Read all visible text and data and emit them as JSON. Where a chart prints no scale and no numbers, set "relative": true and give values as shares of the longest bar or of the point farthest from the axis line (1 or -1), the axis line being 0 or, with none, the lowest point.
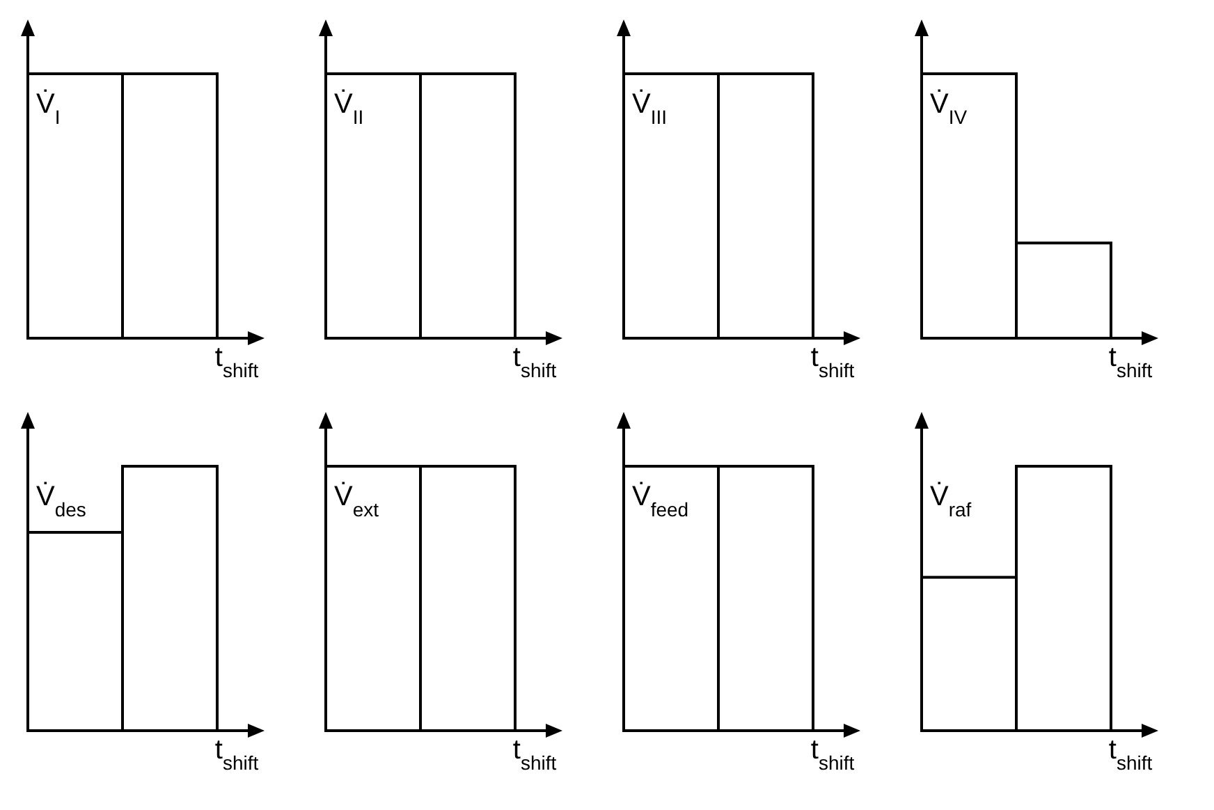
{
  "chart_data": [
    {
      "type": "bar",
      "relative": true,
      "ylabel": "V̇$_{I}$",
      "xlabel": "t$_{shift}$",
      "categories": [
        null,
        null
      ],
      "values": [
        1,
        1
      ],
      "color": "#ffffff"
    },
    {
      "type": "bar",
      "relative": true,
      "ylabel": "V̇$_{II}$",
      "xlabel": "t$_{shift}$",
      "categories": [
        null,
        null
      ],
      "values": [
        1,
        1
      ],
      "color": "#ffffff"
    },
    {
      "type": "bar",
      "relative": true,
      "ylabel": "V̇$_{III}$",
      "xlabel": "t$_{shift}$",
      "categories": [
        null,
        null
      ],
      "values": [
        1,
        1
      ],
      "color": "#ffffff"
    },
    {
      "type": "bar",
      "relative": true,
      "ylabel": "V̇$_{IV}$",
      "xlabel": "t$_{shift}$",
      "categories": [
        null,
        null
      ],
      "values": [
        1,
        0.36
      ],
      "color": "#ffffff"
    },
    {
      "type": "bar",
      "relative": true,
      "ylabel": "V̇$_{des}$",
      "xlabel": "t$_{shift}$",
      "categories": [
        null,
        null
      ],
      "values": [
        0.75,
        1
      ],
      "color": "#ffffff"
    },
    {
      "type": "bar",
      "relative": true,
      "ylabel": "V̇$_{ext}$",
      "xlabel": "t$_{shift}$",
      "categories": [
        null,
        null
      ],
      "values": [
        1,
        1
      ],
      "color": "#ffffff"
    },
    {
      "type": "bar",
      "relative": true,
      "ylabel": "V̇$_{feed}$",
      "xlabel": "t$_{shift}$",
      "categories": [
        null,
        null
      ],
      "values": [
        1,
        1
      ],
      "color": "#ffffff"
    },
    {
      "type": "bar",
      "relative": true,
      "ylabel": "V̇$_{raf}$",
      "xlabel": "t$_{shift}$",
      "categories": [
        null,
        null
      ],
      "values": [
        0.58,
        1
      ],
      "color": "#ffffff"
    }
  ]
}
